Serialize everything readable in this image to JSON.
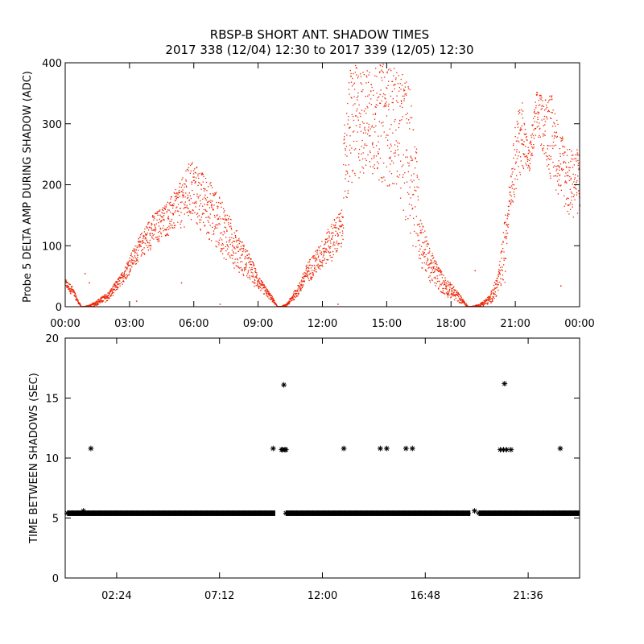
{
  "figure": {
    "title_line1": "RBSP-B SHORT ANT. SHADOW TIMES",
    "title_line2": "2017 338 (12/04) 12:30 to 2017 339 (12/05) 12:30"
  },
  "colors": {
    "amp_points": "#ee2200",
    "time_points": "#000000",
    "axes": "#000000",
    "background": "#ffffff"
  },
  "chart_data": [
    {
      "type": "scatter",
      "ylabel": "Probe 5 DELTA AMP DURING SHADOW (ADC)",
      "xlabel": "",
      "x_units": "hours",
      "xlim": [
        0,
        24
      ],
      "ylim": [
        0,
        400
      ],
      "xticks": [
        0,
        3,
        6,
        9,
        12,
        15,
        18,
        21,
        24
      ],
      "xtick_labels": [
        "00:00",
        "03:00",
        "06:00",
        "09:00",
        "12:00",
        "15:00",
        "18:00",
        "21:00",
        "00:00"
      ],
      "yticks": [
        0,
        100,
        200,
        300,
        400
      ],
      "ytick_labels": [
        "0",
        "100",
        "200",
        "300",
        "400"
      ],
      "grid": false,
      "legend": "none",
      "series": [
        {
          "marker": "dot",
          "envelope_upper": [
            [
              0,
              45
            ],
            [
              0.3,
              35
            ],
            [
              0.6,
              10
            ],
            [
              0.75,
              0
            ],
            [
              1.2,
              5
            ],
            [
              2.0,
              25
            ],
            [
              2.6,
              55
            ],
            [
              3.0,
              85
            ],
            [
              3.5,
              120
            ],
            [
              4.0,
              150
            ],
            [
              4.5,
              165
            ],
            [
              5.0,
              185
            ],
            [
              5.5,
              215
            ],
            [
              5.85,
              245
            ],
            [
              6.3,
              225
            ],
            [
              6.8,
              205
            ],
            [
              7.5,
              160
            ],
            [
              8.0,
              125
            ],
            [
              8.6,
              85
            ],
            [
              9.1,
              45
            ],
            [
              9.6,
              20
            ],
            [
              9.9,
              0
            ],
            [
              10.3,
              5
            ],
            [
              10.9,
              40
            ],
            [
              11.3,
              75
            ],
            [
              11.8,
              100
            ],
            [
              12.2,
              125
            ],
            [
              12.6,
              150
            ],
            [
              12.9,
              160
            ],
            [
              13.0,
              300
            ],
            [
              13.3,
              400
            ],
            [
              14.0,
              390
            ],
            [
              14.8,
              400
            ],
            [
              15.5,
              390
            ],
            [
              16.0,
              370
            ],
            [
              16.3,
              300
            ],
            [
              16.6,
              150
            ],
            [
              17.0,
              95
            ],
            [
              17.6,
              55
            ],
            [
              18.2,
              30
            ],
            [
              18.8,
              0
            ],
            [
              19.3,
              5
            ],
            [
              19.8,
              20
            ],
            [
              20.2,
              60
            ],
            [
              20.5,
              150
            ],
            [
              20.7,
              200
            ],
            [
              21.0,
              310
            ],
            [
              21.3,
              340
            ],
            [
              21.6,
              260
            ],
            [
              22.0,
              360
            ],
            [
              22.3,
              340
            ],
            [
              22.6,
              360
            ],
            [
              23.0,
              300
            ],
            [
              23.5,
              260
            ],
            [
              24.0,
              260
            ]
          ],
          "envelope_lower": [
            [
              0,
              30
            ],
            [
              0.3,
              20
            ],
            [
              0.6,
              5
            ],
            [
              0.75,
              0
            ],
            [
              1.2,
              0
            ],
            [
              2.0,
              10
            ],
            [
              2.6,
              35
            ],
            [
              3.0,
              55
            ],
            [
              3.5,
              80
            ],
            [
              4.0,
              95
            ],
            [
              4.5,
              110
            ],
            [
              5.0,
              120
            ],
            [
              5.5,
              130
            ],
            [
              5.85,
              135
            ],
            [
              6.3,
              120
            ],
            [
              6.8,
              105
            ],
            [
              7.5,
              75
            ],
            [
              8.0,
              60
            ],
            [
              8.6,
              40
            ],
            [
              9.1,
              25
            ],
            [
              9.6,
              10
            ],
            [
              9.9,
              0
            ],
            [
              10.3,
              0
            ],
            [
              10.9,
              20
            ],
            [
              11.3,
              40
            ],
            [
              11.8,
              55
            ],
            [
              12.2,
              70
            ],
            [
              12.6,
              80
            ],
            [
              12.9,
              90
            ],
            [
              13.0,
              150
            ],
            [
              13.3,
              180
            ],
            [
              14.0,
              220
            ],
            [
              14.8,
              200
            ],
            [
              15.5,
              190
            ],
            [
              16.0,
              120
            ],
            [
              16.3,
              90
            ],
            [
              16.6,
              60
            ],
            [
              17.0,
              40
            ],
            [
              17.6,
              20
            ],
            [
              18.2,
              10
            ],
            [
              18.8,
              0
            ],
            [
              19.3,
              0
            ],
            [
              19.8,
              5
            ],
            [
              20.2,
              20
            ],
            [
              20.5,
              40
            ],
            [
              20.7,
              160
            ],
            [
              21.0,
              180
            ],
            [
              21.3,
              230
            ],
            [
              21.6,
              210
            ],
            [
              22.0,
              270
            ],
            [
              22.3,
              250
            ],
            [
              22.6,
              210
            ],
            [
              23.0,
              180
            ],
            [
              23.5,
              140
            ],
            [
              24.0,
              150
            ]
          ],
          "outliers": [
            [
              0.9,
              55
            ],
            [
              1.1,
              40
            ],
            [
              3.3,
              10
            ],
            [
              5.4,
              40
            ],
            [
              7.2,
              5
            ],
            [
              12.7,
              5
            ],
            [
              19.1,
              60
            ],
            [
              20.5,
              80
            ],
            [
              23.1,
              35
            ]
          ]
        }
      ]
    },
    {
      "type": "scatter",
      "ylabel": "TIME BETWEEN SHADOWS (SEC)",
      "xlabel": "",
      "x_units": "hours",
      "xlim": [
        0,
        24
      ],
      "ylim": [
        0,
        20
      ],
      "xticks": [
        2.4,
        7.2,
        12.0,
        16.8,
        21.6
      ],
      "xtick_labels": [
        "02:24",
        "07:12",
        "12:00",
        "16:48",
        "21:36"
      ],
      "yticks": [
        0,
        5,
        10,
        15,
        20
      ],
      "ytick_labels": [
        "0",
        "5",
        "10",
        "15",
        "20"
      ],
      "grid": false,
      "legend": "none",
      "series": [
        {
          "marker": "asterisk",
          "baseline_value": 5.4,
          "baseline_segments": [
            [
              0.1,
              9.8
            ],
            [
              10.3,
              18.9
            ],
            [
              19.3,
              24.0
            ]
          ],
          "points": [
            [
              0.85,
              5.6
            ],
            [
              1.2,
              10.8
            ],
            [
              9.7,
              10.8
            ],
            [
              10.1,
              10.7
            ],
            [
              10.15,
              10.7
            ],
            [
              10.2,
              16.1
            ],
            [
              10.25,
              10.7
            ],
            [
              10.3,
              10.7
            ],
            [
              13.0,
              10.8
            ],
            [
              14.7,
              10.8
            ],
            [
              15.0,
              10.8
            ],
            [
              15.9,
              10.8
            ],
            [
              16.2,
              10.8
            ],
            [
              19.1,
              5.6
            ],
            [
              20.3,
              10.7
            ],
            [
              20.45,
              10.7
            ],
            [
              20.5,
              16.2
            ],
            [
              20.6,
              10.7
            ],
            [
              20.8,
              10.7
            ],
            [
              23.1,
              10.8
            ]
          ]
        }
      ]
    }
  ]
}
